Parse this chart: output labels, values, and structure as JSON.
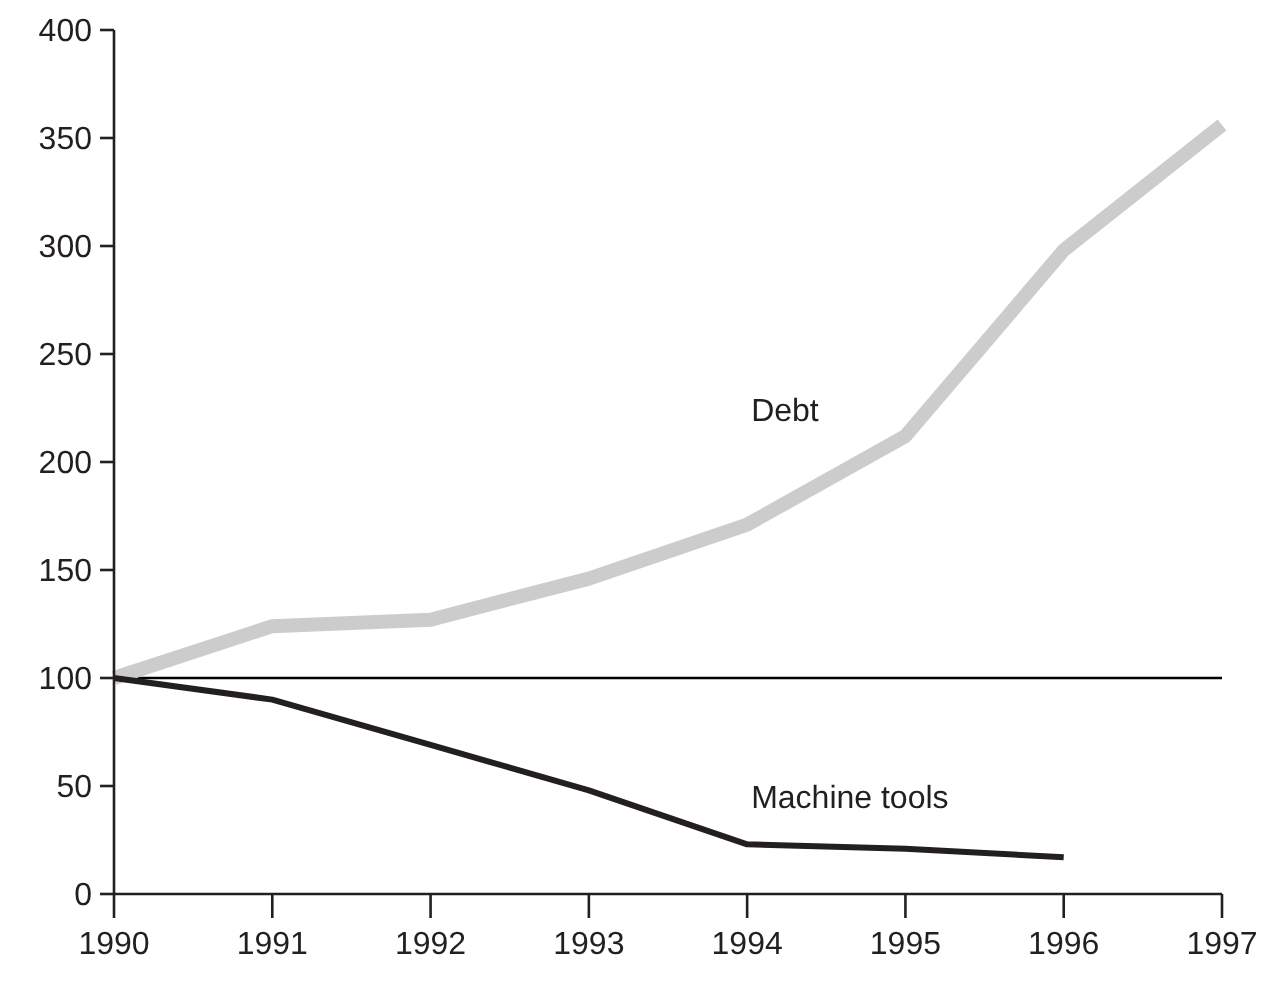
{
  "chart_data": {
    "type": "line",
    "x": [
      1990,
      1991,
      1992,
      1993,
      1994,
      1995,
      1996,
      1997
    ],
    "series": [
      {
        "name": "Debt",
        "color": "#cccccc",
        "values": [
          100,
          124,
          127,
          146,
          171,
          212,
          298,
          356
        ]
      },
      {
        "name": "Machine tools",
        "color": "#231f20",
        "values": [
          100,
          90,
          69,
          48,
          23,
          21,
          17,
          null
        ]
      }
    ],
    "xlim": [
      1990,
      1997
    ],
    "xticks": [
      1990,
      1991,
      1992,
      1993,
      1994,
      1995,
      1996,
      1997
    ],
    "ylim": [
      0,
      400
    ],
    "yticks": [
      0,
      50,
      100,
      150,
      200,
      250,
      300,
      350,
      400
    ],
    "ref_lines": [
      {
        "axis": "y",
        "value": 100,
        "color": "#000000"
      }
    ],
    "grid": false,
    "legend": false,
    "marker": "none",
    "line_style": "solid"
  }
}
